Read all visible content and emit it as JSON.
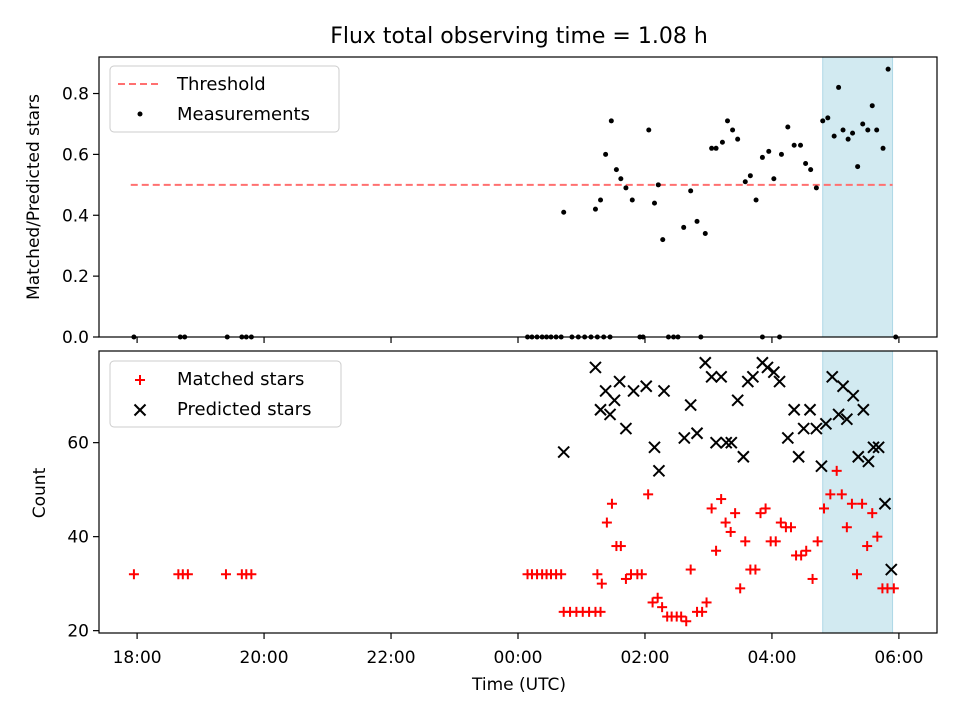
{
  "chart_data": [
    {
      "type": "scatter",
      "title": "Flux total observing time = 1.08 h",
      "ylabel": "Matched/Predicted stars",
      "xlabel": "",
      "x_unit": "hours since 18:00 UTC on the first night (tick labels show clock time)",
      "xlim": [
        -0.6,
        12.6
      ],
      "ylim": [
        0.0,
        0.92
      ],
      "yticks": [
        0.0,
        0.2,
        0.4,
        0.6,
        0.8
      ],
      "ytick_labels": [
        "0.0",
        "0.2",
        "0.4",
        "0.6",
        "0.8"
      ],
      "grid": false,
      "legend_position": "upper-left",
      "highlight_span": {
        "x_start": 10.8,
        "x_end": 11.9,
        "color": "#add8e6"
      },
      "threshold": {
        "name": "Threshold",
        "value": 0.5,
        "x_start": -0.1,
        "x_end": 11.9,
        "color": "#ff7070",
        "style": "dashed"
      },
      "series": [
        {
          "name": "Measurements",
          "color": "#000000",
          "marker": "dot",
          "points": [
            [
              -0.05,
              0
            ],
            [
              0.68,
              0
            ],
            [
              0.75,
              0
            ],
            [
              1.42,
              0
            ],
            [
              1.65,
              0
            ],
            [
              1.72,
              0
            ],
            [
              1.8,
              0
            ],
            [
              6.15,
              0
            ],
            [
              6.22,
              0
            ],
            [
              6.3,
              0
            ],
            [
              6.38,
              0
            ],
            [
              6.45,
              0
            ],
            [
              6.52,
              0
            ],
            [
              6.6,
              0
            ],
            [
              6.68,
              0
            ],
            [
              6.85,
              0
            ],
            [
              6.95,
              0
            ],
            [
              7.05,
              0
            ],
            [
              7.15,
              0
            ],
            [
              7.25,
              0
            ],
            [
              7.35,
              0
            ],
            [
              7.45,
              0
            ],
            [
              7.92,
              0
            ],
            [
              7.97,
              0
            ],
            [
              8.37,
              0
            ],
            [
              8.45,
              0
            ],
            [
              8.52,
              0
            ],
            [
              8.88,
              0
            ],
            [
              9.85,
              0
            ],
            [
              10.12,
              0
            ],
            [
              11.95,
              0
            ],
            [
              6.72,
              0.41
            ],
            [
              7.22,
              0.42
            ],
            [
              7.3,
              0.45
            ],
            [
              7.38,
              0.6
            ],
            [
              7.47,
              0.71
            ],
            [
              7.55,
              0.55
            ],
            [
              7.62,
              0.52
            ],
            [
              7.7,
              0.49
            ],
            [
              7.8,
              0.45
            ],
            [
              8.06,
              0.68
            ],
            [
              8.15,
              0.44
            ],
            [
              8.21,
              0.5
            ],
            [
              8.28,
              0.32
            ],
            [
              8.61,
              0.36
            ],
            [
              8.72,
              0.48
            ],
            [
              8.82,
              0.38
            ],
            [
              8.95,
              0.34
            ],
            [
              9.05,
              0.62
            ],
            [
              9.12,
              0.62
            ],
            [
              9.22,
              0.64
            ],
            [
              9.3,
              0.71
            ],
            [
              9.38,
              0.68
            ],
            [
              9.46,
              0.65
            ],
            [
              9.58,
              0.51
            ],
            [
              9.66,
              0.53
            ],
            [
              9.75,
              0.45
            ],
            [
              9.85,
              0.59
            ],
            [
              9.95,
              0.61
            ],
            [
              10.03,
              0.52
            ],
            [
              10.15,
              0.6
            ],
            [
              10.25,
              0.69
            ],
            [
              10.35,
              0.63
            ],
            [
              10.45,
              0.63
            ],
            [
              10.53,
              0.57
            ],
            [
              10.61,
              0.55
            ],
            [
              10.7,
              0.49
            ],
            [
              10.8,
              0.71
            ],
            [
              10.88,
              0.72
            ],
            [
              10.98,
              0.66
            ],
            [
              11.05,
              0.82
            ],
            [
              11.12,
              0.68
            ],
            [
              11.2,
              0.65
            ],
            [
              11.27,
              0.67
            ],
            [
              11.35,
              0.56
            ],
            [
              11.43,
              0.7
            ],
            [
              11.51,
              0.68
            ],
            [
              11.58,
              0.76
            ],
            [
              11.65,
              0.68
            ],
            [
              11.75,
              0.62
            ],
            [
              11.83,
              0.88
            ]
          ]
        }
      ]
    },
    {
      "type": "scatter",
      "title": "",
      "ylabel": "Count",
      "xlabel": "Time (UTC)",
      "x_unit": "hours since 18:00 UTC on the first night (tick labels show clock time)",
      "xlim": [
        -0.6,
        12.6
      ],
      "ylim": [
        19.5,
        79.5
      ],
      "yticks": [
        20,
        40,
        60
      ],
      "ytick_labels": [
        "20",
        "40",
        "60"
      ],
      "xticks": [
        0,
        2,
        4,
        6,
        8,
        10,
        12
      ],
      "xtick_labels": [
        "18:00",
        "20:00",
        "22:00",
        "00:00",
        "02:00",
        "04:00",
        "06:00"
      ],
      "grid": false,
      "legend_position": "upper-left",
      "highlight_span": {
        "x_start": 10.8,
        "x_end": 11.9,
        "color": "#add8e6"
      },
      "series": [
        {
          "name": "Matched stars",
          "color": "#ff0000",
          "marker": "plus",
          "points": [
            [
              -0.05,
              32
            ],
            [
              0.65,
              32
            ],
            [
              0.72,
              32
            ],
            [
              0.8,
              32
            ],
            [
              1.4,
              32
            ],
            [
              1.65,
              32
            ],
            [
              1.72,
              32
            ],
            [
              1.8,
              32
            ],
            [
              6.15,
              32
            ],
            [
              6.22,
              32
            ],
            [
              6.3,
              32
            ],
            [
              6.38,
              32
            ],
            [
              6.45,
              32
            ],
            [
              6.52,
              32
            ],
            [
              6.6,
              32
            ],
            [
              6.68,
              32
            ],
            [
              6.72,
              24
            ],
            [
              6.82,
              24
            ],
            [
              6.92,
              24
            ],
            [
              7.02,
              24
            ],
            [
              7.12,
              24
            ],
            [
              7.22,
              24
            ],
            [
              7.3,
              24
            ],
            [
              7.25,
              32
            ],
            [
              7.32,
              30
            ],
            [
              7.4,
              43
            ],
            [
              7.48,
              47
            ],
            [
              7.55,
              38
            ],
            [
              7.62,
              38
            ],
            [
              7.7,
              31
            ],
            [
              7.78,
              32
            ],
            [
              7.88,
              32
            ],
            [
              7.95,
              32
            ],
            [
              8.05,
              49
            ],
            [
              8.12,
              26
            ],
            [
              8.2,
              27
            ],
            [
              8.27,
              25
            ],
            [
              8.35,
              23
            ],
            [
              8.42,
              23
            ],
            [
              8.5,
              23
            ],
            [
              8.57,
              23
            ],
            [
              8.65,
              22
            ],
            [
              8.72,
              33
            ],
            [
              8.82,
              24
            ],
            [
              8.9,
              24
            ],
            [
              8.97,
              26
            ],
            [
              9.05,
              46
            ],
            [
              9.12,
              37
            ],
            [
              9.2,
              48
            ],
            [
              9.27,
              43
            ],
            [
              9.35,
              41
            ],
            [
              9.42,
              45
            ],
            [
              9.5,
              29
            ],
            [
              9.58,
              39
            ],
            [
              9.66,
              33
            ],
            [
              9.74,
              33
            ],
            [
              9.82,
              45
            ],
            [
              9.9,
              46
            ],
            [
              9.98,
              39
            ],
            [
              10.06,
              39
            ],
            [
              10.14,
              43
            ],
            [
              10.22,
              42
            ],
            [
              10.3,
              42
            ],
            [
              10.38,
              36
            ],
            [
              10.46,
              36
            ],
            [
              10.54,
              37
            ],
            [
              10.64,
              31
            ],
            [
              10.72,
              39
            ],
            [
              10.82,
              46
            ],
            [
              10.92,
              49
            ],
            [
              11.02,
              54
            ],
            [
              11.1,
              49
            ],
            [
              11.18,
              42
            ],
            [
              11.26,
              47
            ],
            [
              11.34,
              32
            ],
            [
              11.42,
              47
            ],
            [
              11.5,
              38
            ],
            [
              11.58,
              45
            ],
            [
              11.66,
              40
            ],
            [
              11.74,
              29
            ],
            [
              11.82,
              29
            ],
            [
              11.92,
              29
            ]
          ]
        },
        {
          "name": "Predicted stars",
          "color": "#000000",
          "marker": "x",
          "points": [
            [
              6.72,
              58
            ],
            [
              7.22,
              76
            ],
            [
              7.3,
              67
            ],
            [
              7.38,
              71
            ],
            [
              7.45,
              66
            ],
            [
              7.52,
              69
            ],
            [
              7.6,
              73
            ],
            [
              7.7,
              63
            ],
            [
              7.82,
              71
            ],
            [
              8.02,
              72
            ],
            [
              8.15,
              59
            ],
            [
              8.22,
              54
            ],
            [
              8.3,
              71
            ],
            [
              8.62,
              61
            ],
            [
              8.72,
              68
            ],
            [
              8.82,
              62
            ],
            [
              8.95,
              77
            ],
            [
              9.05,
              74
            ],
            [
              9.12,
              60
            ],
            [
              9.2,
              74
            ],
            [
              9.28,
              60
            ],
            [
              9.36,
              60
            ],
            [
              9.46,
              69
            ],
            [
              9.55,
              57
            ],
            [
              9.62,
              73
            ],
            [
              9.7,
              74
            ],
            [
              9.85,
              77
            ],
            [
              9.93,
              76
            ],
            [
              10.03,
              75
            ],
            [
              10.12,
              73
            ],
            [
              10.25,
              61
            ],
            [
              10.35,
              67
            ],
            [
              10.42,
              57
            ],
            [
              10.5,
              63
            ],
            [
              10.6,
              67
            ],
            [
              10.7,
              63
            ],
            [
              10.78,
              55
            ],
            [
              10.85,
              64
            ],
            [
              10.95,
              74
            ],
            [
              11.05,
              66
            ],
            [
              11.12,
              72
            ],
            [
              11.18,
              65
            ],
            [
              11.28,
              70
            ],
            [
              11.36,
              57
            ],
            [
              11.44,
              67
            ],
            [
              11.52,
              56
            ],
            [
              11.6,
              59
            ],
            [
              11.68,
              59
            ],
            [
              11.78,
              47
            ],
            [
              11.88,
              33
            ]
          ]
        }
      ]
    }
  ]
}
